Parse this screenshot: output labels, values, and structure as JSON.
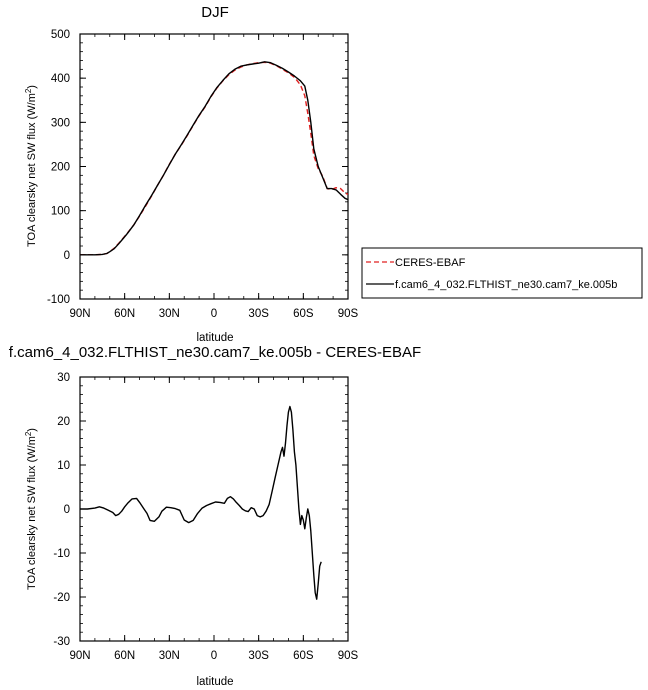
{
  "chart_data": [
    {
      "type": "line",
      "title": "DJF",
      "xlabel": "latitude",
      "ylabel": "TOA clearsky net SW flux (W/m",
      "ylabel_sup": "2",
      "ylabel_close": ")",
      "xlim": [
        90,
        -90
      ],
      "ylim": [
        -100,
        500
      ],
      "xticks": [
        90,
        60,
        30,
        0,
        -30,
        -60,
        -90
      ],
      "xtick_labels": [
        "90N",
        "60N",
        "30N",
        "0",
        "30S",
        "60S",
        "90S"
      ],
      "yticks": [
        -100,
        0,
        100,
        200,
        300,
        400,
        500
      ],
      "ytick_labels": [
        "-100",
        "0",
        "100",
        "200",
        "300",
        "400",
        "500"
      ],
      "legend_position": "right",
      "series": [
        {
          "name": "CERES-EBAF",
          "color": "#e02020",
          "dash": "dashed",
          "points": [
            [
              90,
              0
            ],
            [
              85,
              0
            ],
            [
              80,
              0
            ],
            [
              75,
              1
            ],
            [
              72,
              3
            ],
            [
              70,
              7
            ],
            [
              67,
              15
            ],
            [
              64,
              26
            ],
            [
              61,
              38
            ],
            [
              58,
              50
            ],
            [
              54,
              67
            ],
            [
              50,
              88
            ],
            [
              46,
              110
            ],
            [
              42,
              133
            ],
            [
              38,
              157
            ],
            [
              34,
              180
            ],
            [
              30,
              205
            ],
            [
              26,
              228
            ],
            [
              22,
              248
            ],
            [
              18,
              270
            ],
            [
              14,
              293
            ],
            [
              10,
              315
            ],
            [
              6,
              335
            ],
            [
              2,
              358
            ],
            [
              -2,
              378
            ],
            [
              -6,
              394
            ],
            [
              -10,
              408
            ],
            [
              -14,
              418
            ],
            [
              -18,
              425
            ],
            [
              -22,
              430
            ],
            [
              -26,
              433
            ],
            [
              -30,
              435
            ],
            [
              -34,
              436
            ],
            [
              -38,
              434
            ],
            [
              -42,
              428
            ],
            [
              -46,
              420
            ],
            [
              -50,
              412
            ],
            [
              -54,
              402
            ],
            [
              -58,
              385
            ],
            [
              -61,
              360
            ],
            [
              -63,
              320
            ],
            [
              -65,
              275
            ],
            [
              -67,
              225
            ],
            [
              -70,
              195
            ],
            [
              -73,
              178
            ],
            [
              -76,
              150
            ],
            [
              -79,
              148
            ],
            [
              -82,
              152
            ],
            [
              -85,
              150
            ],
            [
              -88,
              140
            ],
            [
              -90,
              137
            ]
          ]
        },
        {
          "name": "f.cam6_4_032.FLTHIST_ne30.cam7_ke.005b",
          "color": "#000000",
          "dash": "solid",
          "points": [
            [
              90,
              0
            ],
            [
              85,
              0
            ],
            [
              80,
              0
            ],
            [
              75,
              1
            ],
            [
              72,
              3
            ],
            [
              70,
              7
            ],
            [
              67,
              14
            ],
            [
              64,
              25
            ],
            [
              61,
              37
            ],
            [
              58,
              49
            ],
            [
              54,
              67
            ],
            [
              50,
              89
            ],
            [
              46,
              112
            ],
            [
              42,
              134
            ],
            [
              38,
              157
            ],
            [
              34,
              180
            ],
            [
              30,
              204
            ],
            [
              26,
              228
            ],
            [
              22,
              249
            ],
            [
              18,
              271
            ],
            [
              14,
              294
            ],
            [
              10,
              316
            ],
            [
              6,
              336
            ],
            [
              2,
              359
            ],
            [
              -2,
              379
            ],
            [
              -6,
              395
            ],
            [
              -10,
              410
            ],
            [
              -14,
              420
            ],
            [
              -18,
              427
            ],
            [
              -22,
              430
            ],
            [
              -26,
              432
            ],
            [
              -30,
              434
            ],
            [
              -34,
              437
            ],
            [
              -38,
              435
            ],
            [
              -42,
              429
            ],
            [
              -46,
              422
            ],
            [
              -50,
              414
            ],
            [
              -54,
              405
            ],
            [
              -58,
              394
            ],
            [
              -61,
              382
            ],
            [
              -63,
              350
            ],
            [
              -65,
              300
            ],
            [
              -67,
              240
            ],
            [
              -70,
              200
            ],
            [
              -73,
              175
            ],
            [
              -76,
              150
            ],
            [
              -79,
              150
            ],
            [
              -82,
              147
            ],
            [
              -85,
              137
            ],
            [
              -88,
              128
            ],
            [
              -90,
              125
            ]
          ]
        }
      ]
    },
    {
      "type": "line",
      "title": "f.cam6_4_032.FLTHIST_ne30.cam7_ke.005b - CERES-EBAF",
      "xlabel": "latitude",
      "ylabel": "TOA clearsky net SW flux (W/m",
      "ylabel_sup": "2",
      "ylabel_close": ")",
      "xlim": [
        90,
        -90
      ],
      "ylim": [
        -30,
        30
      ],
      "xticks": [
        90,
        60,
        30,
        0,
        -30,
        -60,
        -90
      ],
      "xtick_labels": [
        "90N",
        "60N",
        "30N",
        "0",
        "30S",
        "60S",
        "90S"
      ],
      "yticks": [
        -30,
        -20,
        -10,
        0,
        10,
        20,
        30
      ],
      "ytick_labels": [
        "-30",
        "-20",
        "-10",
        "0",
        "10",
        "20",
        "30"
      ],
      "series": [
        {
          "color": "#000000",
          "dash": "solid",
          "points": [
            [
              90,
              0
            ],
            [
              85,
              0
            ],
            [
              80,
              0.2
            ],
            [
              77,
              0.5
            ],
            [
              74,
              0.2
            ],
            [
              71,
              -0.3
            ],
            [
              68,
              -0.8
            ],
            [
              66,
              -1.5
            ],
            [
              64,
              -1.2
            ],
            [
              62,
              -0.5
            ],
            [
              60,
              0.5
            ],
            [
              58,
              1.3
            ],
            [
              55,
              2.3
            ],
            [
              52,
              2.4
            ],
            [
              50,
              1.5
            ],
            [
              47,
              0
            ],
            [
              45,
              -1
            ],
            [
              43,
              -2.6
            ],
            [
              40,
              -2.8
            ],
            [
              37,
              -1.8
            ],
            [
              35,
              -0.5
            ],
            [
              32,
              0.4
            ],
            [
              29,
              0.3
            ],
            [
              26,
              0.1
            ],
            [
              23,
              -0.3
            ],
            [
              20,
              -2.5
            ],
            [
              17,
              -3.1
            ],
            [
              14,
              -2.6
            ],
            [
              11,
              -1
            ],
            [
              8,
              0.2
            ],
            [
              5,
              0.8
            ],
            [
              2,
              1.2
            ],
            [
              -1,
              1.6
            ],
            [
              -4,
              1.5
            ],
            [
              -7,
              1.3
            ],
            [
              -9,
              2.4
            ],
            [
              -11,
              2.8
            ],
            [
              -13,
              2.3
            ],
            [
              -15,
              1.5
            ],
            [
              -17,
              0.8
            ],
            [
              -19,
              0
            ],
            [
              -21,
              -0.4
            ],
            [
              -23,
              -0.6
            ],
            [
              -25,
              0.3
            ],
            [
              -27,
              0
            ],
            [
              -29,
              -1.5
            ],
            [
              -31,
              -1.8
            ],
            [
              -33,
              -1.5
            ],
            [
              -35,
              -0.5
            ],
            [
              -37,
              1
            ],
            [
              -39,
              4
            ],
            [
              -41,
              7
            ],
            [
              -43,
              10
            ],
            [
              -45,
              13
            ],
            [
              -46,
              14
            ],
            [
              -47,
              12
            ],
            [
              -48,
              15
            ],
            [
              -49,
              19
            ],
            [
              -50,
              22
            ],
            [
              -51,
              23.3
            ],
            [
              -52,
              22
            ],
            [
              -53,
              18
            ],
            [
              -54,
              13
            ],
            [
              -55,
              10
            ],
            [
              -56,
              5
            ],
            [
              -57,
              0
            ],
            [
              -58,
              -3.5
            ],
            [
              -59,
              -1.5
            ],
            [
              -60,
              -2.5
            ],
            [
              -61,
              -4.5
            ],
            [
              -62,
              -2
            ],
            [
              -63,
              0
            ],
            [
              -64,
              -1.5
            ],
            [
              -65,
              -5
            ],
            [
              -66,
              -10
            ],
            [
              -67,
              -15
            ],
            [
              -68,
              -19
            ],
            [
              -69,
              -20.5
            ],
            [
              -70,
              -17
            ],
            [
              -71,
              -13
            ],
            [
              -72,
              -12
            ]
          ]
        }
      ]
    }
  ]
}
